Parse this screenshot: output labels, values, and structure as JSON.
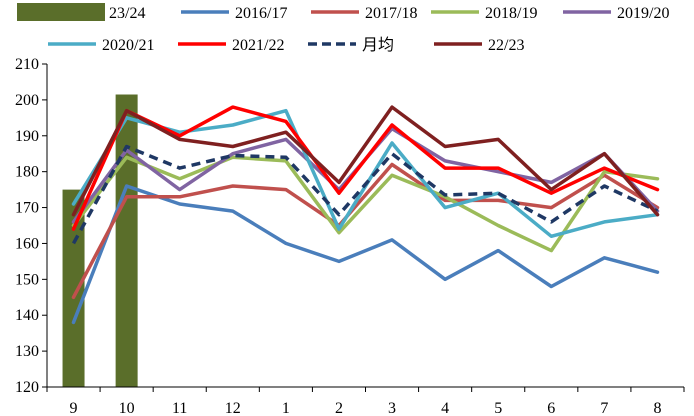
{
  "chart_data": {
    "type": "line",
    "title": "",
    "xlabel": "",
    "ylabel": "",
    "ylim": [
      120,
      210
    ],
    "yticks": [
      120,
      130,
      140,
      150,
      160,
      170,
      180,
      190,
      200,
      210
    ],
    "categories": [
      "9",
      "10",
      "11",
      "12",
      "1",
      "2",
      "3",
      "4",
      "5",
      "6",
      "7",
      "8"
    ],
    "bar_series": {
      "name": "23/24",
      "color": "#5a6e2a",
      "values": [
        175,
        201.5,
        null,
        null,
        null,
        null,
        null,
        null,
        null,
        null,
        null,
        null
      ]
    },
    "series": [
      {
        "name": "2016/17",
        "color": "#4a7ebb",
        "dashed": false,
        "values": [
          138,
          176,
          171,
          169,
          160,
          155,
          161,
          150,
          158,
          148,
          156,
          152
        ]
      },
      {
        "name": "2017/18",
        "color": "#c0504d",
        "dashed": false,
        "values": [
          145,
          173,
          173,
          176,
          175,
          165,
          182,
          172,
          172,
          170,
          179,
          170
        ]
      },
      {
        "name": "2018/19",
        "color": "#9bbb59",
        "dashed": false,
        "values": [
          165,
          184,
          178,
          184,
          183,
          163,
          179,
          173,
          165,
          158,
          180,
          178
        ]
      },
      {
        "name": "2019/20",
        "color": "#8064a2",
        "dashed": false,
        "values": [
          166,
          186,
          175,
          185,
          189,
          175,
          192,
          183,
          180,
          177,
          185,
          169
        ]
      },
      {
        "name": "2020/21",
        "color": "#4bacc6",
        "dashed": false,
        "values": [
          171,
          195,
          191,
          193,
          197,
          164,
          188,
          170,
          174,
          162,
          166,
          168
        ]
      },
      {
        "name": "2021/22",
        "color": "#ff0000",
        "dashed": false,
        "values": [
          164,
          197,
          190,
          198,
          194,
          174,
          193,
          181,
          181,
          174,
          181,
          175
        ]
      },
      {
        "name": "月均",
        "color": "#1f3864",
        "dashed": true,
        "values": [
          160,
          187,
          181,
          184.5,
          184,
          168,
          185,
          173.5,
          174,
          166,
          176,
          169
        ]
      },
      {
        "name": "22/23",
        "color": "#7f2020",
        "dashed": false,
        "values": [
          168,
          197,
          189,
          187,
          191,
          177,
          198,
          187,
          189,
          175,
          185,
          168
        ]
      }
    ],
    "legend_position": "top",
    "grid": false
  }
}
